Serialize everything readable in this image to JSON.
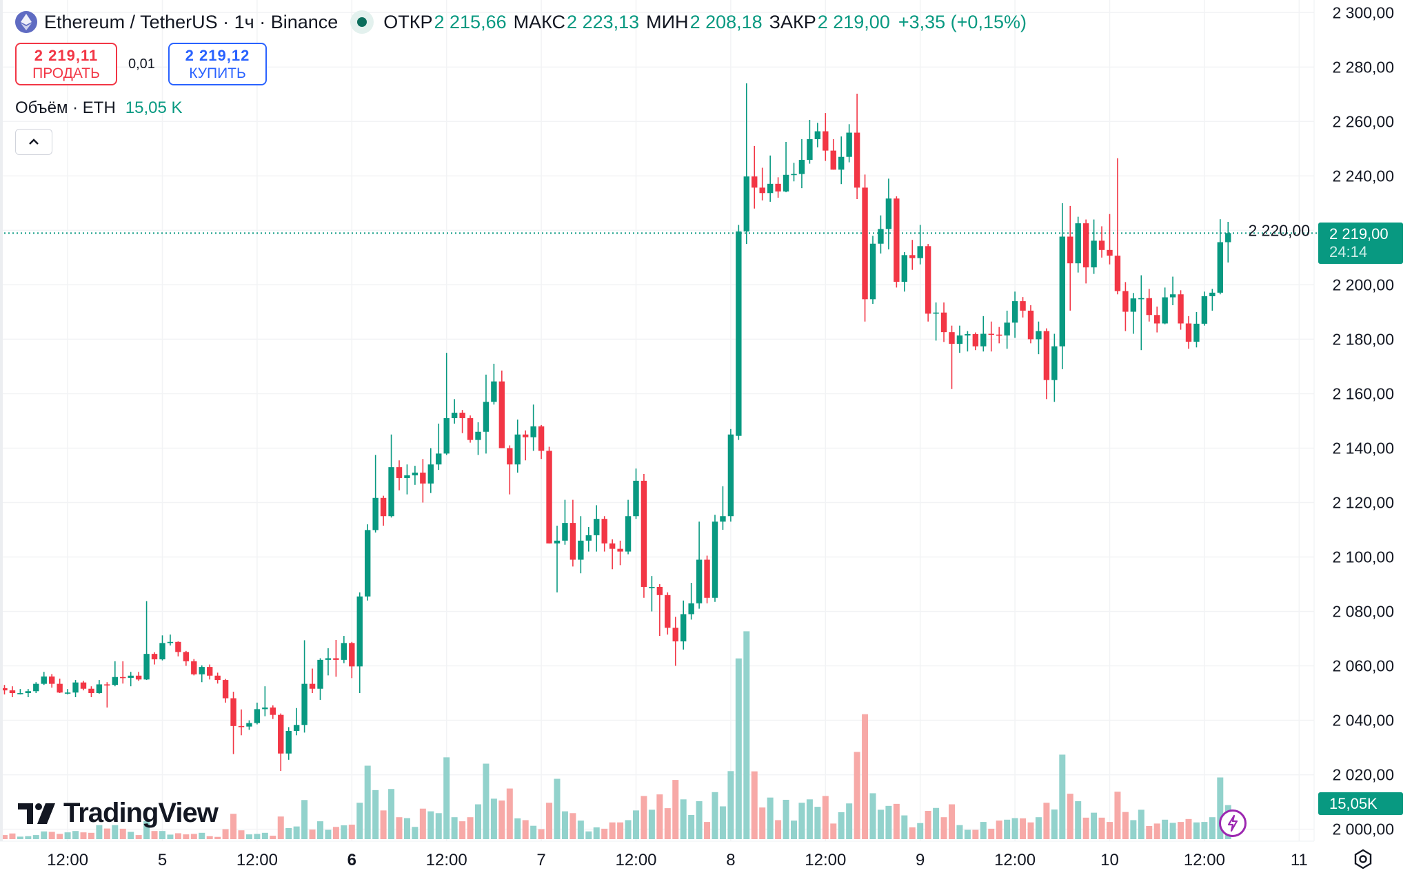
{
  "header": {
    "title": "Ethereum / TetherUS · 1ч · Binance",
    "open_label": "ОТКР",
    "open_value": "2 215,66",
    "high_label": "МАКС",
    "high_value": "2 223,13",
    "low_label": "МИН",
    "low_value": "2 208,18",
    "close_label": "ЗАКР",
    "close_value": "2 219,00",
    "change": "+3,35 (+0,15%)"
  },
  "trade": {
    "sell_price": "2 219,11",
    "sell_label": "ПРОДАТЬ",
    "spread": "0,01",
    "buy_price": "2 219,12",
    "buy_label": "КУПИТЬ"
  },
  "volume_legend": {
    "label": "Объём · ETH",
    "value": "15,05 K"
  },
  "price_tag": {
    "price": "2 219,00",
    "countdown": "24:14"
  },
  "volume_tag": "15,05K",
  "logo": "TradingView",
  "colors": {
    "up": "#089981",
    "down": "#f23645",
    "vol_up": "#92d2cc",
    "vol_down": "#f7a9a7",
    "buy": "#2962ff",
    "indicator": "#9c27b0"
  },
  "icons": [
    "ethereum-icon",
    "market-status-icon",
    "chevron-up-icon",
    "lightning-icon",
    "settings-icon"
  ],
  "chart_data": {
    "type": "candlestick",
    "symbol": "ETHUSDT",
    "interval": "1h",
    "ylim": [
      2000,
      2300
    ],
    "y_ticks": [
      2300,
      2280,
      2260,
      2240,
      2220,
      2200,
      2180,
      2160,
      2140,
      2120,
      2100,
      2080,
      2060,
      2040,
      2020,
      2000
    ],
    "y_tick_labels": [
      "2 300,00",
      "2 280,00",
      "2 260,00",
      "2 240,00",
      "2 220,00",
      "2 200,00",
      "2 180,00",
      "2 160,00",
      "2 140,00",
      "2 120,00",
      "2 100,00",
      "2 080,00",
      "2 060,00",
      "2 040,00",
      "2 020,00",
      "2 000,00"
    ],
    "x_labels": [
      {
        "bar": 8,
        "text": "12:00",
        "bold": false
      },
      {
        "bar": 20,
        "text": "5",
        "bold": false
      },
      {
        "bar": 32,
        "text": "12:00",
        "bold": false
      },
      {
        "bar": 44,
        "text": "6",
        "bold": true
      },
      {
        "bar": 56,
        "text": "12:00",
        "bold": false
      },
      {
        "bar": 68,
        "text": "7",
        "bold": false
      },
      {
        "bar": 80,
        "text": "12:00",
        "bold": false
      },
      {
        "bar": 92,
        "text": "8",
        "bold": false
      },
      {
        "bar": 104,
        "text": "12:00",
        "bold": false
      },
      {
        "bar": 116,
        "text": "9",
        "bold": false
      },
      {
        "bar": 128,
        "text": "12:00",
        "bold": false
      },
      {
        "bar": 140,
        "text": "10",
        "bold": false
      },
      {
        "bar": 152,
        "text": "12:00",
        "bold": false
      },
      {
        "bar": 164,
        "text": "11",
        "bold": false
      }
    ],
    "last_price": 2219.0,
    "grid": true,
    "ohlc": [
      [
        2051.8,
        2053,
        2049.5,
        2051.0
      ],
      [
        2051.0,
        2052.5,
        2048.5,
        2050.0
      ],
      [
        2050.0,
        2051.5,
        2049.5,
        2050.0
      ],
      [
        2050.0,
        2051.5,
        2048.5,
        2050.7
      ],
      [
        2050.7,
        2054.0,
        2050.0,
        2053.4
      ],
      [
        2053.4,
        2057.8,
        2053.0,
        2056.1
      ],
      [
        2056.1,
        2057.0,
        2052.0,
        2053.4
      ],
      [
        2053.4,
        2055.3,
        2050.0,
        2050.2
      ],
      [
        2050.2,
        2051.5,
        2049.5,
        2050.2
      ],
      [
        2050.2,
        2054.8,
        2048.5,
        2053.9
      ],
      [
        2053.9,
        2054.5,
        2051.0,
        2051.6
      ],
      [
        2051.6,
        2052.5,
        2048.5,
        2050.0
      ],
      [
        2050.0,
        2054.8,
        2049.8,
        2053.2
      ],
      [
        2053.2,
        2054.0,
        2044.7,
        2053.0
      ],
      [
        2053.0,
        2061.7,
        2052.5,
        2055.9
      ],
      [
        2055.9,
        2061.7,
        2053.5,
        2055.6
      ],
      [
        2055.6,
        2057.8,
        2052.5,
        2056.4
      ],
      [
        2056.4,
        2057.8,
        2054.5,
        2055.0
      ],
      [
        2055.0,
        2083.8,
        2054.8,
        2064.4
      ],
      [
        2064.4,
        2065.0,
        2060.5,
        2062.4
      ],
      [
        2062.4,
        2071.2,
        2062.0,
        2068.4
      ],
      [
        2068.4,
        2071.5,
        2067.5,
        2068.8
      ],
      [
        2068.8,
        2069.0,
        2063.5,
        2065.1
      ],
      [
        2065.1,
        2065.5,
        2060.0,
        2061.7
      ],
      [
        2061.7,
        2062.5,
        2056.5,
        2056.9
      ],
      [
        2056.9,
        2060.2,
        2054.0,
        2059.6
      ],
      [
        2059.6,
        2060.5,
        2055.0,
        2056.4
      ],
      [
        2056.4,
        2057.5,
        2053.5,
        2054.8
      ],
      [
        2054.8,
        2055.2,
        2046.5,
        2048.1
      ],
      [
        2048.1,
        2050.5,
        2027.6,
        2037.9
      ],
      [
        2037.9,
        2044.0,
        2034.5,
        2037.7
      ],
      [
        2037.7,
        2040.0,
        2036.5,
        2039.0
      ],
      [
        2039.0,
        2046.5,
        2038.5,
        2044.1
      ],
      [
        2044.1,
        2052.5,
        2041.5,
        2044.7
      ],
      [
        2044.7,
        2045.5,
        2040.5,
        2042.0
      ],
      [
        2042.0,
        2042.5,
        2021.4,
        2027.8
      ],
      [
        2027.8,
        2037.5,
        2025.5,
        2036.1
      ],
      [
        2036.1,
        2044.5,
        2034.5,
        2038.3
      ],
      [
        2038.3,
        2069.4,
        2035.5,
        2053.4
      ],
      [
        2053.4,
        2059.0,
        2050.0,
        2051.6
      ],
      [
        2051.6,
        2062.8,
        2047.5,
        2062.2
      ],
      [
        2062.2,
        2066.5,
        2056.5,
        2062.8
      ],
      [
        2062.8,
        2069.5,
        2056.0,
        2062.2
      ],
      [
        2062.2,
        2071.0,
        2061.0,
        2068.4
      ],
      [
        2068.4,
        2068.8,
        2055.5,
        2059.8
      ],
      [
        2059.8,
        2087.0,
        2050.0,
        2085.5
      ],
      [
        2085.5,
        2112.0,
        2084.0,
        2109.9
      ],
      [
        2109.9,
        2137.5,
        2109.0,
        2121.7
      ],
      [
        2121.7,
        2122.5,
        2111.5,
        2115.0
      ],
      [
        2115.0,
        2145.0,
        2114.5,
        2133.0
      ],
      [
        2133.0,
        2135.5,
        2124.5,
        2129.0
      ],
      [
        2129.0,
        2134.0,
        2123.0,
        2130.0
      ],
      [
        2130.0,
        2133.5,
        2126.5,
        2131.0
      ],
      [
        2131.0,
        2136.0,
        2120.0,
        2127.0
      ],
      [
        2127.0,
        2140.0,
        2123.5,
        2134.0
      ],
      [
        2134.0,
        2149.0,
        2132.0,
        2138.0
      ],
      [
        2138.0,
        2175.0,
        2137.5,
        2151.0
      ],
      [
        2151.0,
        2158.0,
        2149.0,
        2153.0
      ],
      [
        2153.0,
        2154.0,
        2145.5,
        2151.0
      ],
      [
        2151.0,
        2152.0,
        2142.0,
        2143.0
      ],
      [
        2143.0,
        2149.5,
        2137.5,
        2146.0
      ],
      [
        2146.0,
        2167.0,
        2138.0,
        2157.0
      ],
      [
        2157.0,
        2171.0,
        2156.0,
        2164.5
      ],
      [
        2164.5,
        2168.5,
        2140.0,
        2140.0
      ],
      [
        2140.0,
        2141.0,
        2123.0,
        2134.0
      ],
      [
        2134.0,
        2150.5,
        2131.0,
        2145.0
      ],
      [
        2145.0,
        2146.5,
        2135.5,
        2144.0
      ],
      [
        2144.0,
        2156.0,
        2139.0,
        2148.0
      ],
      [
        2148.0,
        2148.5,
        2136.0,
        2139.0
      ],
      [
        2139.0,
        2140.5,
        2105.0,
        2105.0
      ],
      [
        2105.0,
        2111.5,
        2087.0,
        2106.0
      ],
      [
        2106.0,
        2121.0,
        2104.5,
        2112.5
      ],
      [
        2112.5,
        2121.0,
        2096.5,
        2099.0
      ],
      [
        2099.0,
        2115.0,
        2094.0,
        2106.0
      ],
      [
        2106.0,
        2111.0,
        2102.0,
        2108.0
      ],
      [
        2108.0,
        2119.0,
        2102.0,
        2114.0
      ],
      [
        2114.0,
        2115.0,
        2102.0,
        2105.0
      ],
      [
        2105.0,
        2106.5,
        2095.5,
        2103.0
      ],
      [
        2103.0,
        2106.0,
        2097.0,
        2102.0
      ],
      [
        2102.0,
        2121.0,
        2101.0,
        2115.0
      ],
      [
        2115.0,
        2132.5,
        2114.0,
        2128.0
      ],
      [
        2128.0,
        2130.5,
        2085.0,
        2089.0
      ],
      [
        2089.0,
        2093.0,
        2080.0,
        2089.0
      ],
      [
        2089.0,
        2090.0,
        2071.0,
        2086.0
      ],
      [
        2086.0,
        2087.0,
        2071.5,
        2074.0
      ],
      [
        2074.0,
        2078.0,
        2060.0,
        2069.0
      ],
      [
        2069.0,
        2084.0,
        2066.0,
        2079.0
      ],
      [
        2079.0,
        2090.5,
        2077.0,
        2083.0
      ],
      [
        2083.0,
        2113.0,
        2081.0,
        2099.0
      ],
      [
        2099.0,
        2100.5,
        2083.0,
        2085.0
      ],
      [
        2085.0,
        2115.5,
        2083.5,
        2113.0
      ],
      [
        2113.0,
        2126.0,
        2110.0,
        2115.0
      ],
      [
        2115.0,
        2147.0,
        2113.0,
        2145.0
      ],
      [
        2144.5,
        2222.0,
        2143.0,
        2219.6
      ],
      [
        2219.6,
        2274.0,
        2215.0,
        2239.8
      ],
      [
        2239.8,
        2251.0,
        2228.0,
        2235.7
      ],
      [
        2235.7,
        2243.0,
        2231.0,
        2233.7
      ],
      [
        2233.7,
        2247.5,
        2230.5,
        2237.1
      ],
      [
        2237.1,
        2239.5,
        2232.0,
        2234.3
      ],
      [
        2234.3,
        2252.5,
        2234.0,
        2240.4
      ],
      [
        2240.4,
        2244.8,
        2238.0,
        2240.7
      ],
      [
        2240.7,
        2253.5,
        2235.5,
        2245.9
      ],
      [
        2245.9,
        2260.6,
        2244.5,
        2253.5
      ],
      [
        2253.5,
        2259.5,
        2250.5,
        2256.4
      ],
      [
        2256.4,
        2263.1,
        2245.5,
        2249.3
      ],
      [
        2249.3,
        2253.5,
        2242.3,
        2242.3
      ],
      [
        2242.3,
        2254.5,
        2237.0,
        2247.0
      ],
      [
        2247.0,
        2259.0,
        2245.0,
        2255.9
      ],
      [
        2255.9,
        2270.2,
        2231.5,
        2235.7
      ],
      [
        2235.7,
        2240.5,
        2186.5,
        2194.7
      ],
      [
        2194.7,
        2218.0,
        2193.0,
        2215.1
      ],
      [
        2215.1,
        2225.5,
        2211.5,
        2220.5
      ],
      [
        2220.5,
        2239.0,
        2213.0,
        2231.7
      ],
      [
        2231.7,
        2232.5,
        2199.0,
        2201.1
      ],
      [
        2201.1,
        2212.0,
        2197.5,
        2210.9
      ],
      [
        2210.9,
        2216.5,
        2205.5,
        2209.8
      ],
      [
        2209.8,
        2222.0,
        2207.5,
        2214.2
      ],
      [
        2214.2,
        2215.0,
        2186.5,
        2189.4
      ],
      [
        2189.4,
        2193.5,
        2179.5,
        2189.8
      ],
      [
        2189.8,
        2193.5,
        2179.0,
        2182.6
      ],
      [
        2182.6,
        2185.0,
        2161.7,
        2178.3
      ],
      [
        2178.3,
        2185.0,
        2175.0,
        2181.4
      ],
      [
        2181.4,
        2183.0,
        2175.5,
        2181.9
      ],
      [
        2181.9,
        2182.5,
        2176.0,
        2177.4
      ],
      [
        2177.4,
        2188.5,
        2175.5,
        2182.0
      ],
      [
        2182.0,
        2186.5,
        2175.5,
        2181.7
      ],
      [
        2181.7,
        2184.5,
        2178.5,
        2181.4
      ],
      [
        2181.4,
        2190.5,
        2176.5,
        2186.1
      ],
      [
        2186.1,
        2197.5,
        2180.5,
        2194.0
      ],
      [
        2194.0,
        2195.5,
        2188.0,
        2190.5
      ],
      [
        2190.5,
        2192.5,
        2178.5,
        2180.0
      ],
      [
        2180.0,
        2186.5,
        2174.5,
        2183.0
      ],
      [
        2183.0,
        2184.0,
        2158.0,
        2165.0
      ],
      [
        2165.0,
        2182.0,
        2157.0,
        2177.4
      ],
      [
        2177.4,
        2230.0,
        2169.0,
        2217.7
      ],
      [
        2217.7,
        2229.0,
        2190.5,
        2207.9
      ],
      [
        2207.9,
        2225.0,
        2204.5,
        2222.6
      ],
      [
        2222.6,
        2224.0,
        2200.5,
        2206.4
      ],
      [
        2206.4,
        2224.0,
        2204.0,
        2216.2
      ],
      [
        2216.2,
        2221.5,
        2210.0,
        2212.8
      ],
      [
        2212.8,
        2226.0,
        2207.5,
        2210.7
      ],
      [
        2210.7,
        2246.5,
        2196.5,
        2197.7
      ],
      [
        2197.7,
        2201.0,
        2183.0,
        2190.1
      ],
      [
        2190.1,
        2197.0,
        2182.0,
        2195.0
      ],
      [
        2195.0,
        2203.5,
        2176.0,
        2195.1
      ],
      [
        2195.1,
        2198.5,
        2186.5,
        2188.9
      ],
      [
        2188.9,
        2192.0,
        2182.5,
        2185.8
      ],
      [
        2185.8,
        2199.0,
        2185.5,
        2195.4
      ],
      [
        2195.4,
        2203.0,
        2192.5,
        2196.5
      ],
      [
        2196.5,
        2198.0,
        2183.5,
        2185.8
      ],
      [
        2185.8,
        2188.5,
        2176.5,
        2179.1
      ],
      [
        2179.1,
        2190.0,
        2177.0,
        2185.7
      ],
      [
        2185.7,
        2197.5,
        2185.0,
        2195.8
      ],
      [
        2195.8,
        2198.5,
        2190.5,
        2197.1
      ],
      [
        2197.1,
        2224.1,
        2196.5,
        2215.66
      ],
      [
        2215.66,
        2223.13,
        2208.18,
        2219.0
      ]
    ],
    "volume_k": [
      1.8,
      2.5,
      1.1,
      1.3,
      1.8,
      3.4,
      3.2,
      2.3,
      3.0,
      3.6,
      3.0,
      2.8,
      6.2,
      4.7,
      6.2,
      4.6,
      3.2,
      1.8,
      8.0,
      3.6,
      3.6,
      2.0,
      2.6,
      2.1,
      2.3,
      2.8,
      1.3,
      1.0,
      4.4,
      11.2,
      3.9,
      2.1,
      2.3,
      2.8,
      1.5,
      10.0,
      4.9,
      5.6,
      17.3,
      4.2,
      7.9,
      4.1,
      5.4,
      6.1,
      6.4,
      16.1,
      32.5,
      21.7,
      12.7,
      22.2,
      9.7,
      9.3,
      5.4,
      13.5,
      12.3,
      11.5,
      36.2,
      9.7,
      7.9,
      9.7,
      15.4,
      33.4,
      17.9,
      17.1,
      22.4,
      9.2,
      8.4,
      5.9,
      4.4,
      16.1,
      26.7,
      12.3,
      11.5,
      8.2,
      3.4,
      5.2,
      4.6,
      7.4,
      7.4,
      8.4,
      12.7,
      19.1,
      13.0,
      19.8,
      13.7,
      26.2,
      17.6,
      10.7,
      16.8,
      7.6,
      20.8,
      14.5,
      30.1,
      80.0,
      92.0,
      30.0,
      14.0,
      18.4,
      8.4,
      17.4,
      8.2,
      16.1,
      17.6,
      14.3,
      19.1,
      6.9,
      11.9,
      15.8,
      38.6,
      55.3,
      20.3,
      13.0,
      14.7,
      15.6,
      10.5,
      5.2,
      7.1,
      12.5,
      13.8,
      9.7,
      15.4,
      6.2,
      4.1,
      4.1,
      7.6,
      4.6,
      8.2,
      8.6,
      9.3,
      9.2,
      7.4,
      9.7,
      16.1,
      13.1,
      37.4,
      20.1,
      16.8,
      9.5,
      11.7,
      9.5,
      7.6,
      21.0,
      12.0,
      8.4,
      13.0,
      5.8,
      6.9,
      8.6,
      7.2,
      7.6,
      8.9,
      7.4,
      7.6,
      9.7,
      27.3,
      15.05
    ]
  }
}
